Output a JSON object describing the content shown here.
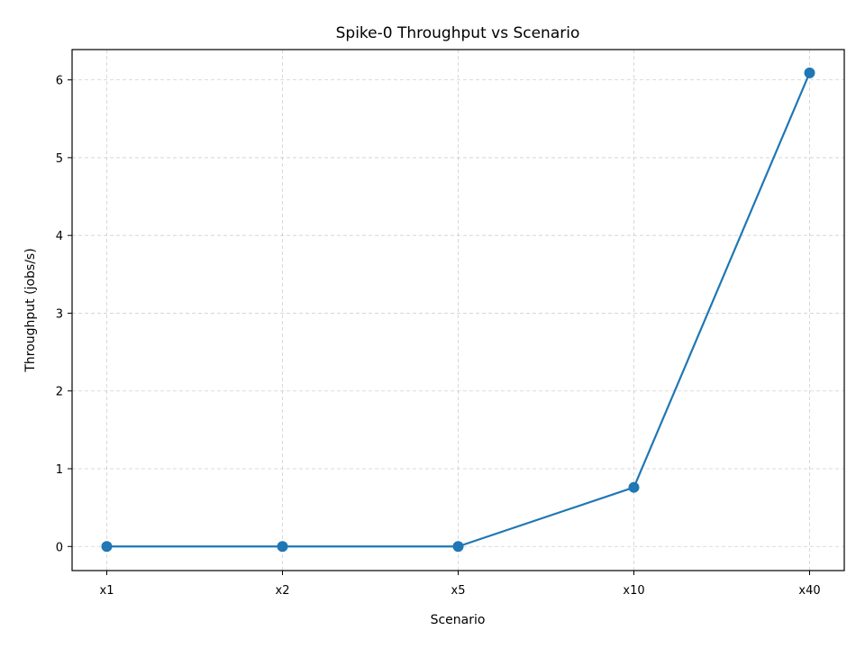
{
  "chart_data": {
    "type": "line",
    "title": "Spike-0 Throughput vs Scenario",
    "xlabel": "Scenario",
    "ylabel": "Throughput (jobs/s)",
    "categories": [
      "x1",
      "x2",
      "x5",
      "x10",
      "x40"
    ],
    "series": [
      {
        "values": [
          0,
          0,
          0,
          0.76,
          6.09
        ],
        "color": "#1f77b4"
      }
    ],
    "ylim": [
      -0.31,
      6.39
    ],
    "yticks": [
      0,
      1,
      2,
      3,
      4,
      5,
      6
    ],
    "grid": true,
    "grid_style": "dashed",
    "marker": "circle",
    "legend": "none"
  }
}
